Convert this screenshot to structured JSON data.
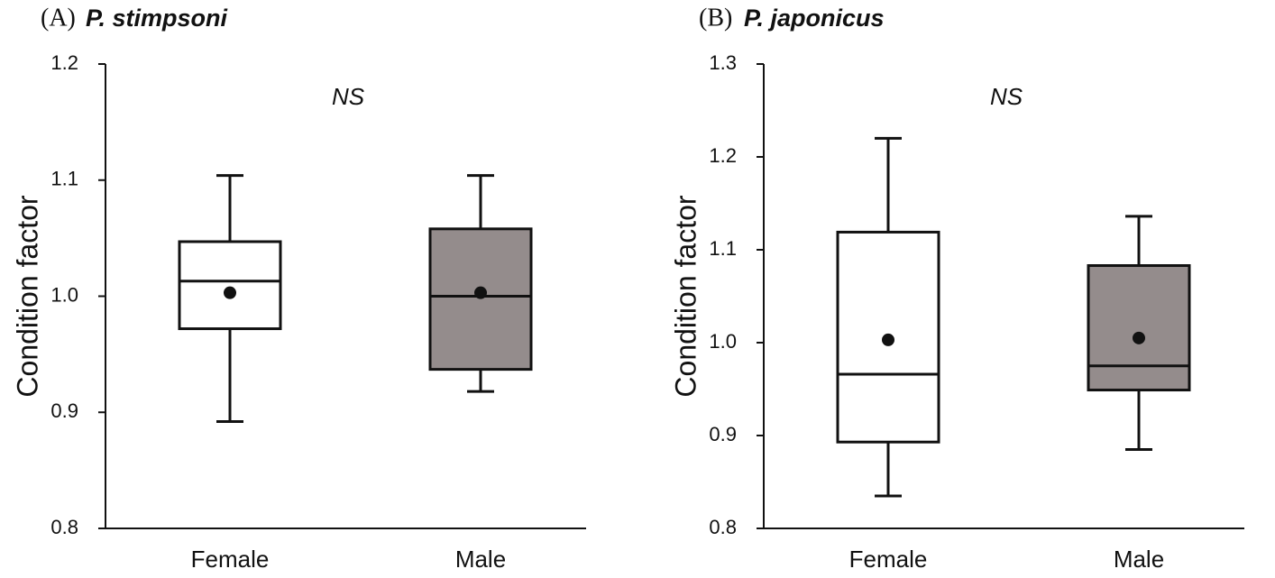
{
  "chart_data": [
    {
      "type": "box",
      "panel": "(A)",
      "title": "P. stimpsoni",
      "annotation": "NS",
      "ylabel": "Condition factor",
      "categories": [
        "Female",
        "Male"
      ],
      "colors": [
        "#ffffff",
        "#948c8c"
      ],
      "stats": [
        {
          "min": 0.892,
          "q1": 0.972,
          "median": 1.013,
          "q3": 1.047,
          "max": 1.104,
          "mean": 1.003
        },
        {
          "min": 0.918,
          "q1": 0.937,
          "median": 1.0,
          "q3": 1.058,
          "max": 1.104,
          "mean": 1.003
        }
      ],
      "ylim": [
        0.8,
        1.2
      ],
      "yticks": [
        0.8,
        0.9,
        {
          "value": 1,
          "label": "1.0"
        },
        1.1,
        1.2
      ]
    },
    {
      "type": "box",
      "panel": "(B)",
      "title": "P. japonicus",
      "annotation": "NS",
      "ylabel": "Condition factor",
      "categories": [
        "Female",
        "Male"
      ],
      "colors": [
        "#ffffff",
        "#948c8c"
      ],
      "stats": [
        {
          "min": 0.835,
          "q1": 0.893,
          "median": 0.966,
          "q3": 1.119,
          "max": 1.22,
          "mean": 1.003
        },
        {
          "min": 0.885,
          "q1": 0.949,
          "median": 0.975,
          "q3": 1.083,
          "max": 1.136,
          "mean": 1.005
        }
      ],
      "ylim": [
        0.8,
        1.3
      ],
      "yticks": [
        0.8,
        0.9,
        {
          "value": 1,
          "label": "1.0"
        },
        1.1,
        1.2,
        1.3
      ]
    }
  ]
}
